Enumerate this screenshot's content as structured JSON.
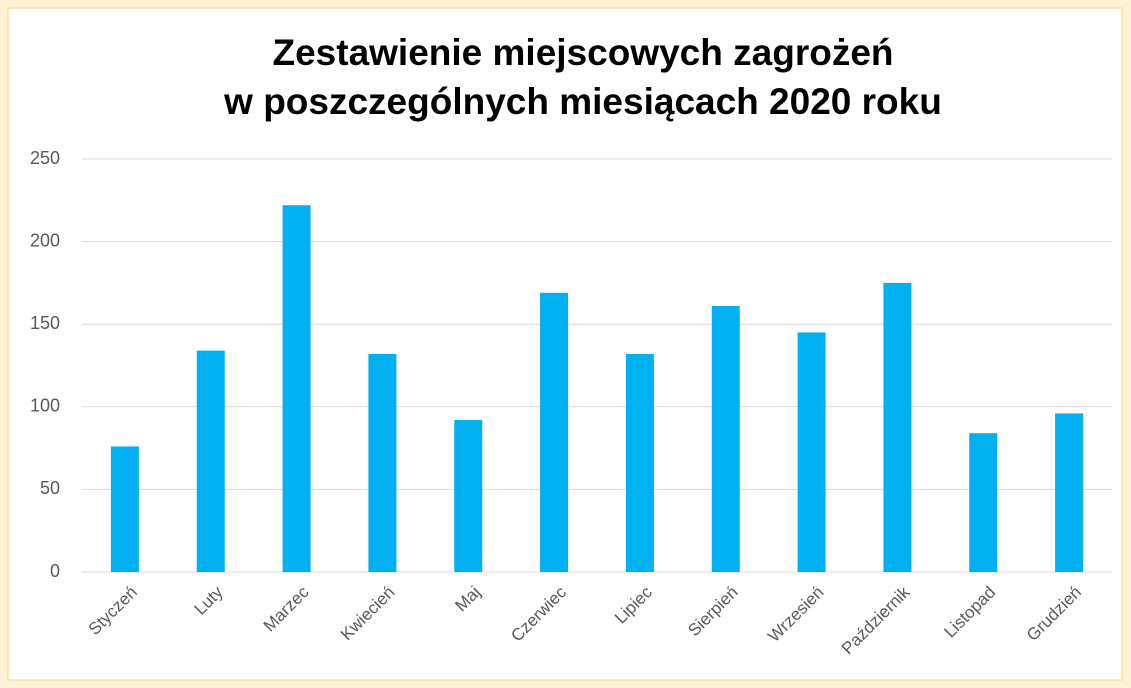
{
  "chart_data": {
    "type": "bar",
    "title": [
      "Zestawienie miejscowych zagrożeń",
      "w poszczególnych miesiącach 2020 roku"
    ],
    "categories": [
      "Styczeń",
      "Luty",
      "Marzec",
      "Kwiecień",
      "Maj",
      "Czerwiec",
      "Lipiec",
      "Sierpień",
      "Wrzesień",
      "Październik",
      "Listopad",
      "Grudzień"
    ],
    "values": [
      76,
      134,
      222,
      132,
      92,
      169,
      132,
      161,
      145,
      175,
      84,
      96
    ],
    "color": "#00b0f0",
    "ylim": [
      0,
      250
    ],
    "yticks": [
      0,
      50,
      100,
      150,
      200,
      250
    ],
    "grid": true
  }
}
